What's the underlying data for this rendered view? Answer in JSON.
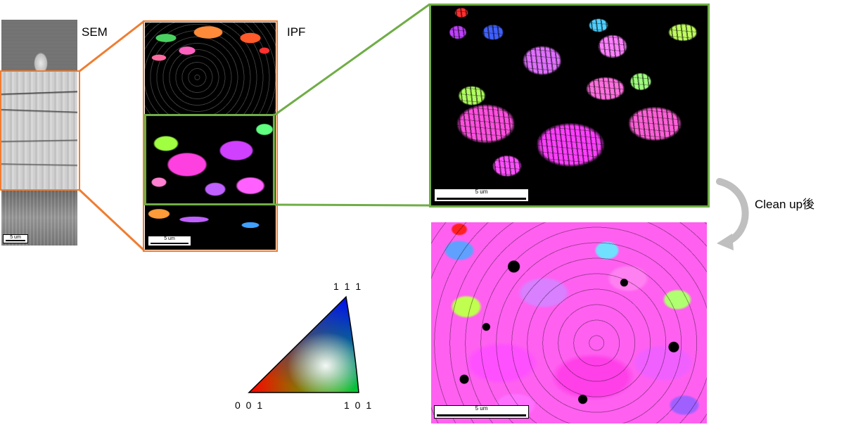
{
  "labels": {
    "sem": "SEM",
    "ipf": "IPF",
    "clean_up": "Clean up後"
  },
  "scale_bars": {
    "sem": "5 um",
    "ipf_narrow": "5 um",
    "ipf_raw": "5 um",
    "ipf_clean": "5 um"
  },
  "color_key": {
    "top": "1 1 1",
    "bottom_left": "0 0 1",
    "bottom_right": "1 0 1"
  },
  "colors": {
    "orange": "#ef7d31",
    "green": "#70ad47",
    "arrow": "#bfbfbf"
  }
}
